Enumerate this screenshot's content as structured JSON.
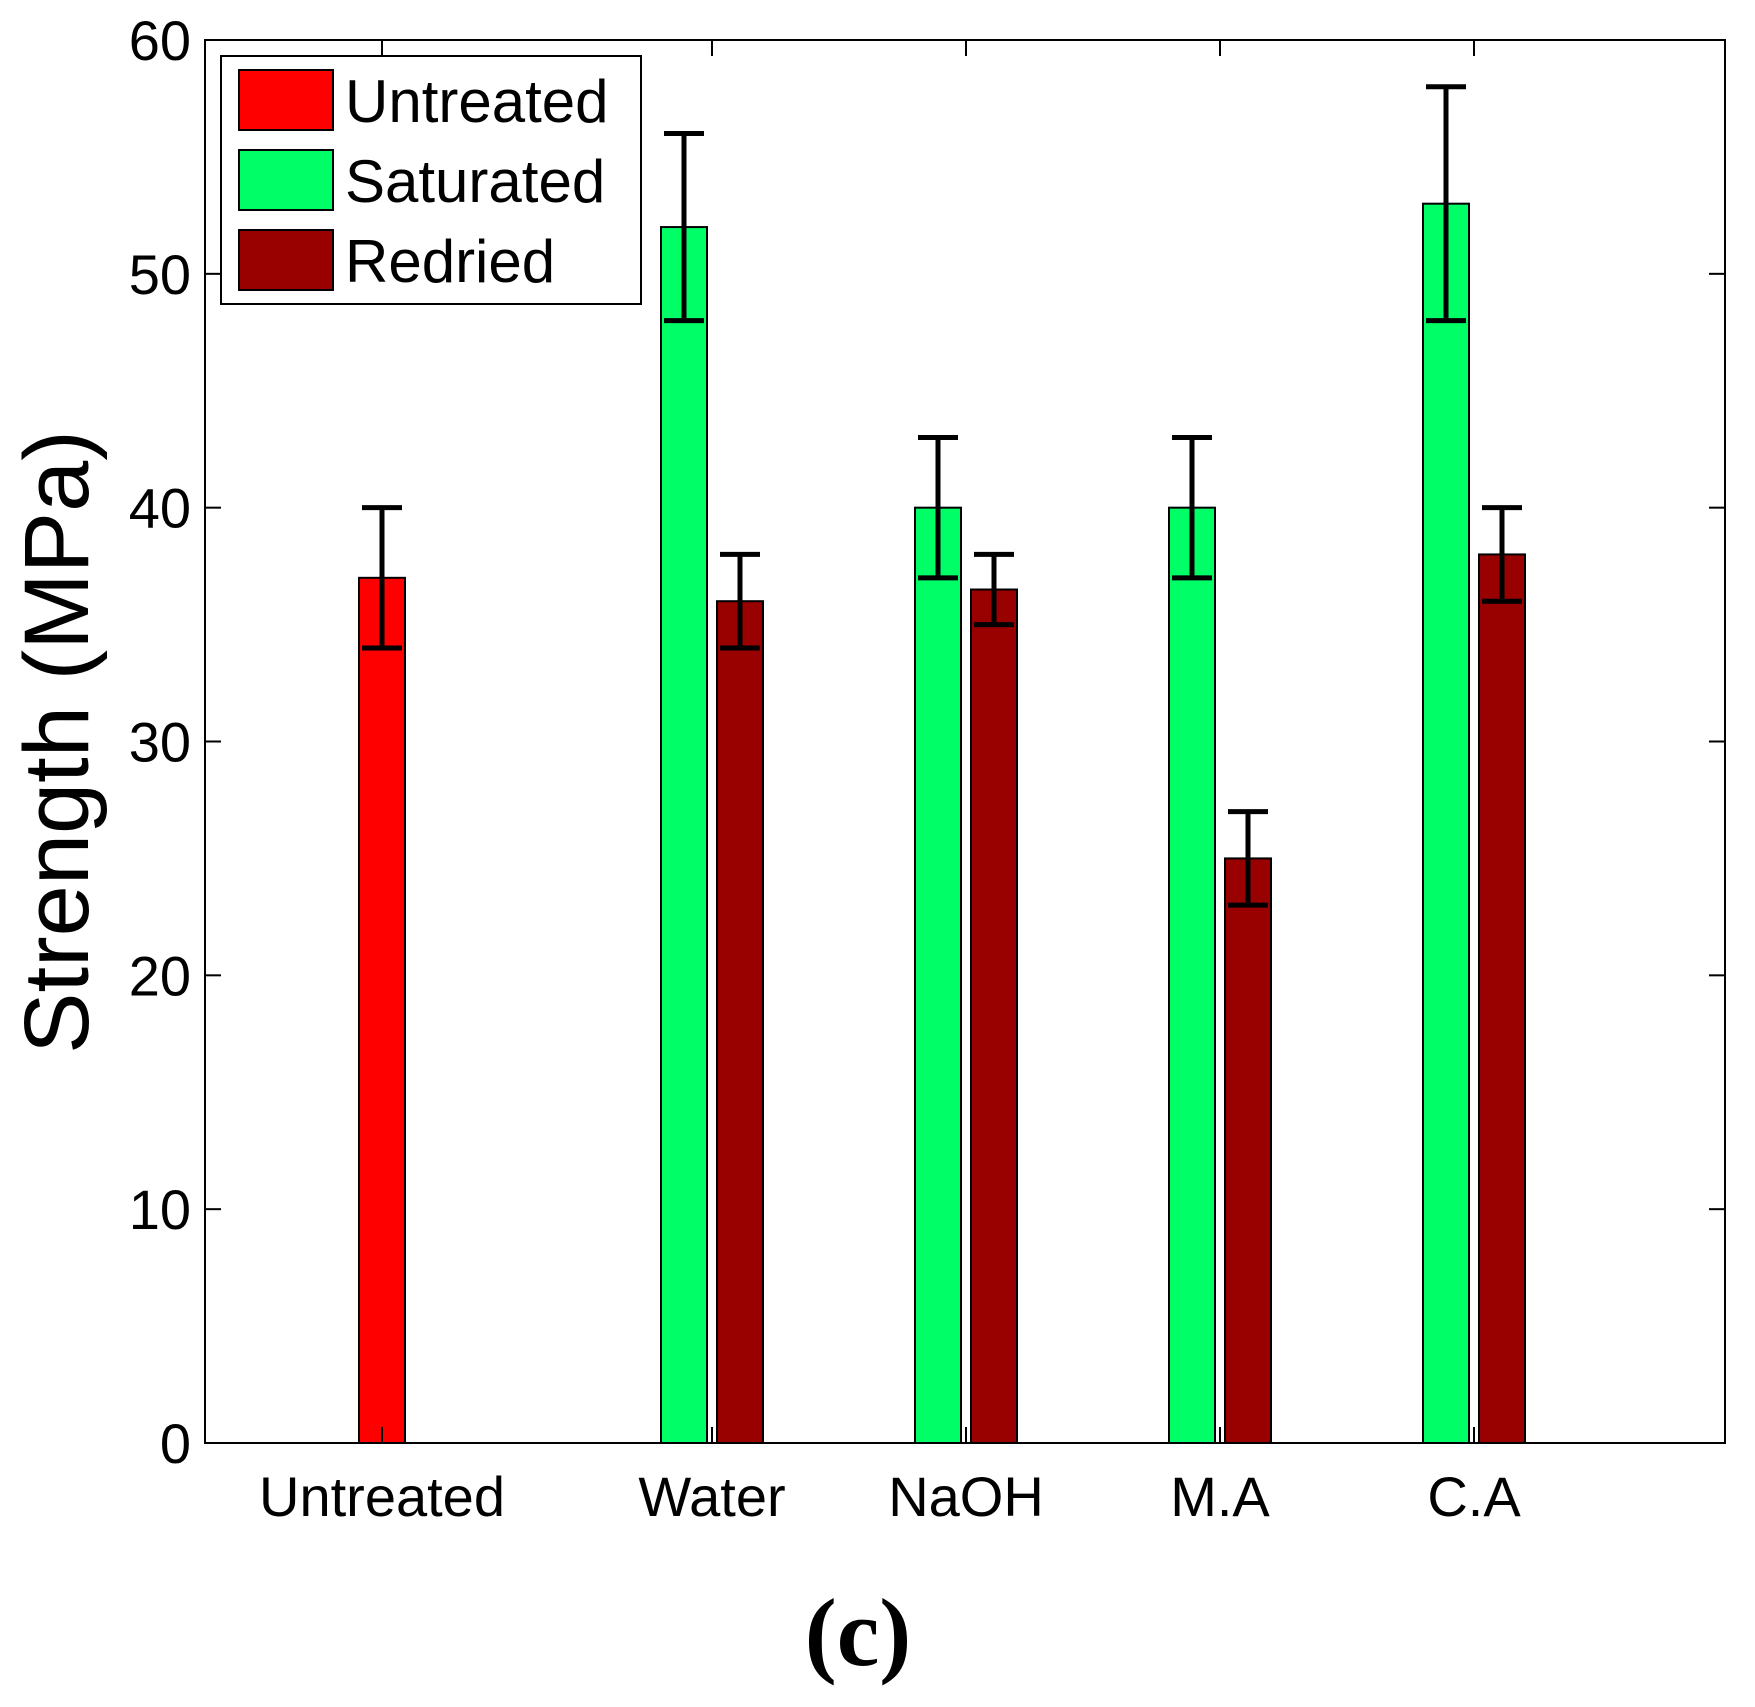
{
  "chart_data": {
    "type": "bar",
    "categories": [
      "Untreated",
      "Water",
      "NaOH",
      "M.A",
      "C.A"
    ],
    "ylabel": "Strength (MPa)",
    "xlabel": "",
    "ylim": [
      0,
      60
    ],
    "yticks": [
      "0",
      "10",
      "20",
      "30",
      "40",
      "50",
      "60"
    ],
    "caption": "(c)",
    "grid": false,
    "legend_position": "top-left",
    "series": [
      {
        "name": "Untreated",
        "color": "#ff0000",
        "values": [
          37,
          null,
          null,
          null,
          null
        ],
        "error_low": [
          34,
          null,
          null,
          null,
          null
        ],
        "error_high": [
          40,
          null,
          null,
          null,
          null
        ]
      },
      {
        "name": "Saturated",
        "color": "#00ff66",
        "values": [
          null,
          52,
          40,
          40,
          53
        ],
        "error_low": [
          null,
          48,
          37,
          37,
          48
        ],
        "error_high": [
          null,
          56,
          43,
          43,
          58
        ]
      },
      {
        "name": "Redried",
        "color": "#990000",
        "values": [
          null,
          36,
          36.5,
          25,
          38
        ],
        "error_low": [
          null,
          34,
          35,
          23,
          36
        ],
        "error_high": [
          null,
          38,
          38,
          27,
          40
        ]
      }
    ]
  }
}
